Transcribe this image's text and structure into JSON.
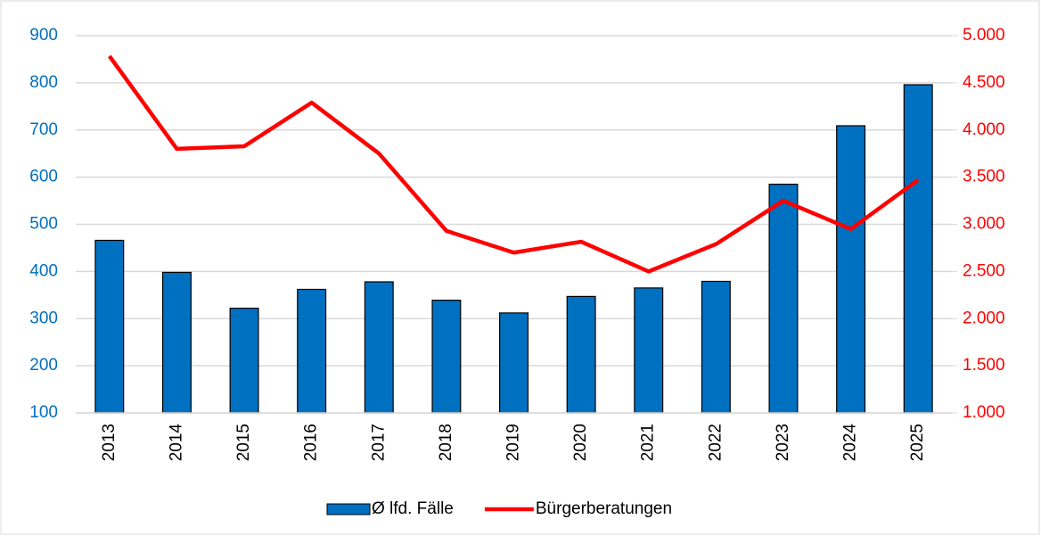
{
  "chart_data": {
    "type": "bar",
    "categories": [
      "2013",
      "2014",
      "2015",
      "2016",
      "2017",
      "2018",
      "2019",
      "2020",
      "2021",
      "2022",
      "2023",
      "2024",
      "2025"
    ],
    "series": [
      {
        "name": "Ø lfd. Fälle",
        "type": "bar",
        "color": "#0070c0",
        "values": [
          466,
          398,
          322,
          362,
          378,
          339,
          312,
          347,
          365,
          379,
          585,
          709,
          796
        ]
      },
      {
        "name": "Bürgerberatungen",
        "type": "line",
        "axis": "y2",
        "color": "#ff0000",
        "values": [
          4783,
          3800,
          3827,
          4290,
          3750,
          2930,
          2700,
          2815,
          2500,
          2790,
          3250,
          2950,
          3470
        ]
      }
    ],
    "ylim": [
      100,
      900
    ],
    "yticks": [
      100,
      200,
      300,
      400,
      500,
      600,
      700,
      800,
      900
    ],
    "ycolor": "#0070c0",
    "y2lim": [
      1000,
      5000
    ],
    "y2ticks": [
      {
        "value": 1000,
        "label": "1.000"
      },
      {
        "value": 1500,
        "label": "1.500"
      },
      {
        "value": 2000,
        "label": "2.000"
      },
      {
        "value": 2500,
        "label": "2.500"
      },
      {
        "value": 3000,
        "label": "3.000"
      },
      {
        "value": 3500,
        "label": "3.500"
      },
      {
        "value": 4000,
        "label": "4.000"
      },
      {
        "value": 4500,
        "label": "4.500"
      },
      {
        "value": 5000,
        "label": "5.000"
      }
    ],
    "y2color": "#ff0000",
    "grid": true,
    "legend": "bottom"
  }
}
